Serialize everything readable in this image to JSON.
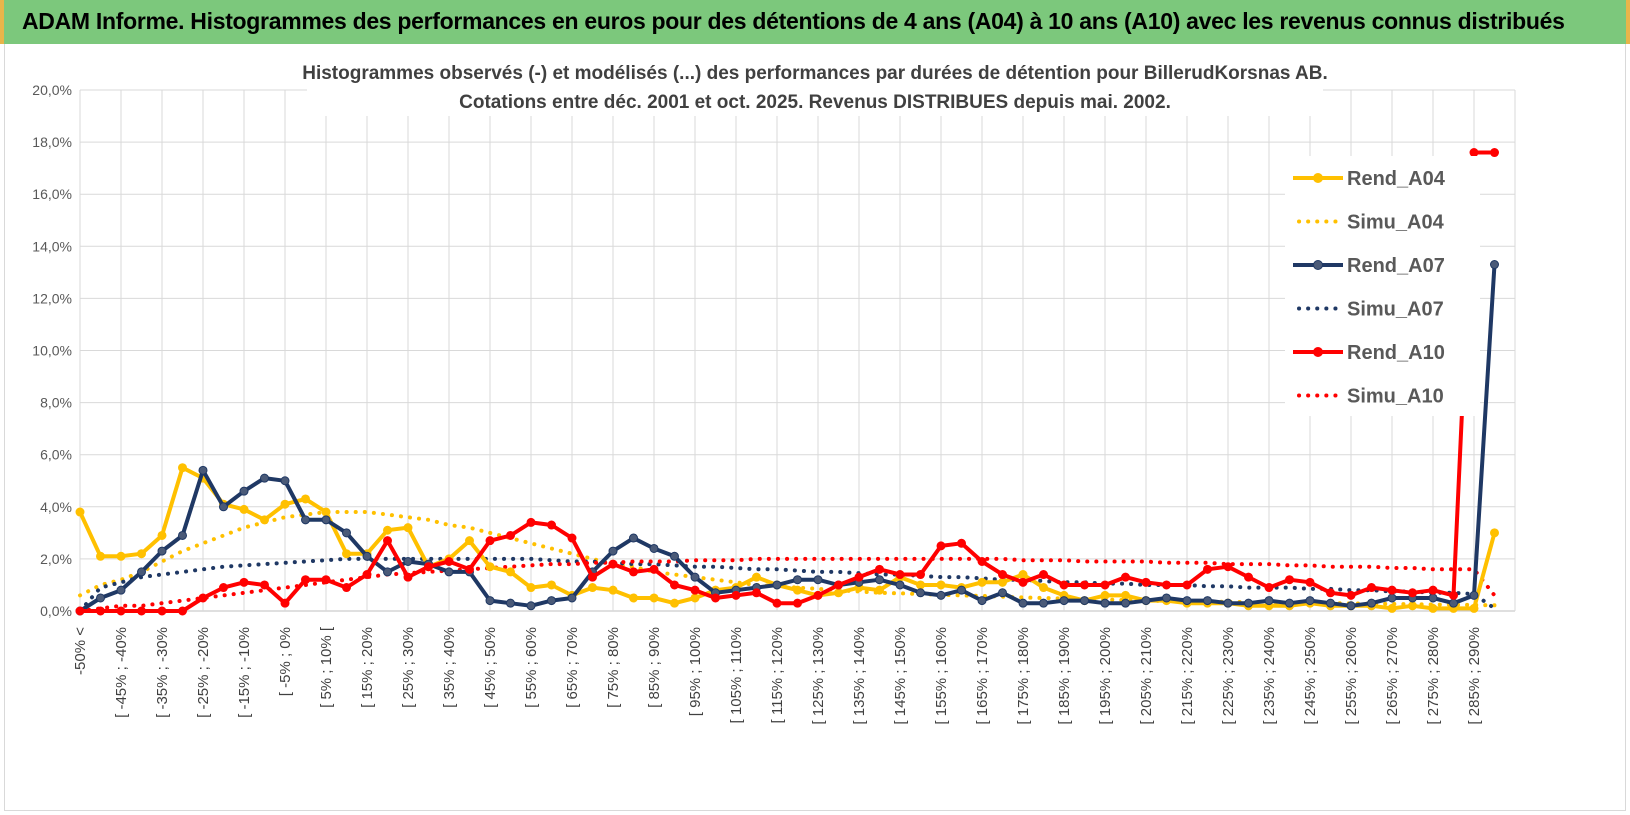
{
  "banner": {
    "title": "ADAM Informe. Histogrammes des performances en euros pour des détentions de 4 ans (A04) à 10 ans (A10) avec les revenus connus distribués"
  },
  "colors": {
    "banner_bg": "#7cc87c",
    "a04": "#ffc000",
    "a07": "#1f3864",
    "a10": "#ff0000",
    "grid": "#d9d9d9"
  },
  "chart_data": {
    "type": "line",
    "title_lines": [
      "Histogrammes observés (-) et modélisés (...) des performances par durées de détention pour BillerudKorsnas AB.",
      "Cotations entre déc. 2001 et oct. 2025. Revenus DISTRIBUES depuis mai. 2002."
    ],
    "ylim": [
      0,
      20
    ],
    "y_ticks": [
      "0,0%",
      "2,0%",
      "4,0%",
      "6,0%",
      "8,0%",
      "10,0%",
      "12,0%",
      "14,0%",
      "16,0%",
      "18,0%",
      "20,0%"
    ],
    "x_tick_labels": [
      "-50% <",
      "[ -45% ; -40%",
      "[ -35% ; -30%",
      "[ -25% ; -20%",
      "[ -15% ; -10%",
      "[ -5% ; 0%",
      "[ 5% ; 10% [",
      "[ 15% ; 20%",
      "[ 25% ; 30%",
      "[ 35% ; 40%",
      "[ 45% ; 50%",
      "[ 55% ; 60%",
      "[ 65% ; 70%",
      "[ 75% ; 80%",
      "[ 85% ; 90%",
      "[ 95% ; 100%",
      "[ 105% ; 110%",
      "[ 115% ; 120%",
      "[ 125% ; 130%",
      "[ 135% ; 140%",
      "[ 145% ; 150%",
      "[ 155% ; 160%",
      "[ 165% ; 170%",
      "[ 175% ; 180%",
      "[ 185% ; 190%",
      "[ 195% ; 200%",
      "[ 205% ; 210%",
      "[ 215% ; 220%",
      "[ 225% ; 230%",
      "[ 235% ; 240%",
      "[ 245% ; 250%",
      "[ 255% ; 260%",
      "[ 265% ; 270%",
      "[ 275% ; 280%",
      "[ 285% ; 290%"
    ],
    "x_count": 70,
    "series": [
      {
        "name": "Rend_A04",
        "style": "solid",
        "color": "#ffc000",
        "values": [
          3.8,
          2.1,
          2.1,
          2.2,
          2.9,
          5.5,
          5.1,
          4.1,
          3.9,
          3.5,
          4.1,
          4.3,
          3.8,
          2.2,
          2.2,
          3.1,
          3.2,
          1.7,
          2.0,
          2.7,
          1.7,
          1.5,
          0.9,
          1.0,
          0.6,
          0.9,
          0.8,
          0.5,
          0.5,
          0.3,
          0.5,
          0.8,
          0.9,
          1.3,
          1.0,
          0.8,
          0.6,
          0.7,
          0.9,
          0.8,
          1.3,
          1.0,
          1.0,
          0.9,
          1.1,
          1.1,
          1.4,
          0.9,
          0.6,
          0.4,
          0.6,
          0.6,
          0.4,
          0.4,
          0.3,
          0.3,
          0.3,
          0.2,
          0.2,
          0.2,
          0.3,
          0.2,
          0.2,
          0.2,
          0.1,
          0.2,
          0.1,
          0.1,
          0.1,
          3.0
        ]
      },
      {
        "name": "Simu_A04",
        "style": "dotted",
        "color": "#ffc000",
        "values": [
          0.6,
          1.0,
          1.2,
          1.5,
          1.9,
          2.3,
          2.6,
          2.9,
          3.2,
          3.4,
          3.6,
          3.7,
          3.8,
          3.8,
          3.8,
          3.7,
          3.6,
          3.5,
          3.3,
          3.2,
          3.0,
          2.8,
          2.6,
          2.4,
          2.2,
          2.0,
          1.8,
          1.7,
          1.5,
          1.4,
          1.3,
          1.2,
          1.1,
          1.0,
          0.95,
          0.9,
          0.85,
          0.8,
          0.75,
          0.7,
          0.68,
          0.65,
          0.62,
          0.6,
          0.58,
          0.55,
          0.52,
          0.5,
          0.48,
          0.46,
          0.44,
          0.42,
          0.4,
          0.38,
          0.37,
          0.36,
          0.35,
          0.34,
          0.33,
          0.32,
          0.31,
          0.3,
          0.29,
          0.28,
          0.27,
          0.26,
          0.25,
          0.24,
          0.23,
          0.22
        ]
      },
      {
        "name": "Rend_A07",
        "style": "solid",
        "color": "#1f3864",
        "values": [
          0.0,
          0.5,
          0.8,
          1.5,
          2.3,
          2.9,
          5.4,
          4.0,
          4.6,
          5.1,
          5.0,
          3.5,
          3.5,
          3.0,
          2.1,
          1.5,
          1.9,
          1.8,
          1.5,
          1.5,
          0.4,
          0.3,
          0.2,
          0.4,
          0.5,
          1.5,
          2.3,
          2.8,
          2.4,
          2.1,
          1.3,
          0.7,
          0.8,
          0.9,
          1.0,
          1.2,
          1.2,
          1.0,
          1.1,
          1.2,
          1.0,
          0.7,
          0.6,
          0.8,
          0.4,
          0.7,
          0.3,
          0.3,
          0.4,
          0.4,
          0.3,
          0.3,
          0.4,
          0.5,
          0.4,
          0.4,
          0.3,
          0.3,
          0.4,
          0.3,
          0.4,
          0.3,
          0.2,
          0.3,
          0.5,
          0.5,
          0.5,
          0.3,
          0.6,
          13.3
        ]
      },
      {
        "name": "Simu_A07",
        "style": "dotted",
        "color": "#1f3864",
        "values": [
          0.0,
          0.9,
          1.1,
          1.3,
          1.4,
          1.5,
          1.6,
          1.7,
          1.75,
          1.8,
          1.85,
          1.9,
          1.95,
          2.0,
          2.0,
          2.0,
          2.0,
          2.0,
          2.0,
          2.0,
          2.0,
          2.0,
          2.0,
          1.95,
          1.9,
          1.9,
          1.85,
          1.8,
          1.8,
          1.75,
          1.7,
          1.7,
          1.65,
          1.6,
          1.6,
          1.55,
          1.5,
          1.5,
          1.45,
          1.4,
          1.4,
          1.35,
          1.3,
          1.3,
          1.25,
          1.2,
          1.2,
          1.15,
          1.1,
          1.1,
          1.05,
          1.05,
          1.0,
          1.0,
          1.0,
          0.95,
          0.95,
          0.9,
          0.9,
          0.9,
          0.85,
          0.85,
          0.8,
          0.8,
          0.75,
          0.75,
          0.7,
          0.7,
          0.65,
          0.1
        ]
      },
      {
        "name": "Rend_A10",
        "style": "solid",
        "color": "#ff0000",
        "values": [
          0.0,
          0.0,
          0.0,
          0.0,
          0.0,
          0.0,
          0.5,
          0.9,
          1.1,
          1.0,
          0.3,
          1.2,
          1.2,
          0.9,
          1.4,
          2.7,
          1.3,
          1.7,
          1.9,
          1.6,
          2.7,
          2.9,
          3.4,
          3.3,
          2.8,
          1.3,
          1.8,
          1.5,
          1.6,
          1.0,
          0.8,
          0.5,
          0.6,
          0.7,
          0.3,
          0.3,
          0.6,
          1.0,
          1.3,
          1.6,
          1.4,
          1.4,
          2.5,
          2.6,
          1.9,
          1.4,
          1.1,
          1.4,
          1.0,
          1.0,
          1.0,
          1.3,
          1.1,
          1.0,
          1.0,
          1.6,
          1.7,
          1.3,
          0.9,
          1.2,
          1.1,
          0.7,
          0.6,
          0.9,
          0.8,
          0.7,
          0.8,
          0.6,
          17.6,
          17.6
        ]
      },
      {
        "name": "Simu_A10",
        "style": "dotted",
        "color": "#ff0000",
        "values": [
          0.0,
          0.1,
          0.2,
          0.2,
          0.3,
          0.4,
          0.5,
          0.6,
          0.7,
          0.8,
          0.9,
          1.0,
          1.1,
          1.2,
          1.3,
          1.4,
          1.45,
          1.5,
          1.55,
          1.6,
          1.65,
          1.7,
          1.75,
          1.8,
          1.8,
          1.85,
          1.85,
          1.9,
          1.9,
          1.9,
          1.95,
          1.95,
          1.95,
          2.0,
          2.0,
          2.0,
          2.0,
          2.0,
          2.0,
          2.0,
          2.0,
          2.0,
          2.0,
          2.0,
          2.0,
          2.0,
          1.95,
          1.95,
          1.95,
          1.9,
          1.9,
          1.9,
          1.9,
          1.85,
          1.85,
          1.85,
          1.8,
          1.8,
          1.8,
          1.75,
          1.75,
          1.7,
          1.7,
          1.7,
          1.65,
          1.65,
          1.6,
          1.6,
          1.6,
          0.6
        ]
      }
    ],
    "legend_position": "top-right"
  }
}
